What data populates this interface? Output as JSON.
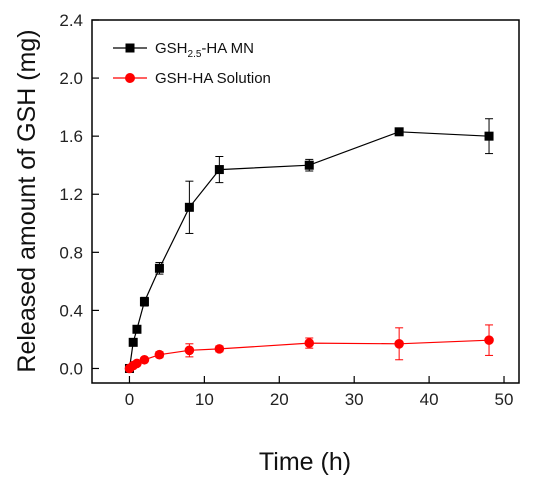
{
  "chart_data": {
    "type": "line",
    "title": "",
    "xlabel": "Time (h)",
    "ylabel": "Released amount of GSH (mg)",
    "xlim": [
      -5,
      52
    ],
    "ylim": [
      -0.1,
      2.4
    ],
    "xticks": [
      0,
      10,
      20,
      30,
      40,
      50
    ],
    "yticks": [
      0.0,
      0.4,
      0.8,
      1.2,
      1.6,
      2.0,
      2.4
    ],
    "xtick_labels": [
      "0",
      "10",
      "20",
      "30",
      "40",
      "50"
    ],
    "ytick_labels": [
      "0.0",
      "0.4",
      "0.8",
      "1.2",
      "1.6",
      "2.0",
      "2.4"
    ],
    "grid": false,
    "legend_position": "top-left",
    "series": [
      {
        "name": "GSH2.5-HA MN",
        "legend_main": "GSH",
        "legend_sub": "2.5",
        "legend_tail": "-HA MN",
        "color": "#000000",
        "marker": "square",
        "x": [
          0,
          0.5,
          1,
          2,
          4,
          8,
          12,
          24,
          36,
          48
        ],
        "y": [
          0.0,
          0.18,
          0.27,
          0.46,
          0.69,
          1.11,
          1.37,
          1.4,
          1.63,
          1.6
        ],
        "err": [
          0.0,
          0.0,
          0.02,
          0.03,
          0.04,
          0.18,
          0.09,
          0.04,
          0.0,
          0.12
        ]
      },
      {
        "name": "GSH-HA Solution",
        "color": "#ff0000",
        "marker": "circle",
        "x": [
          0,
          0.5,
          1,
          2,
          4,
          8,
          12,
          24,
          36,
          48
        ],
        "y": [
          0.0,
          0.02,
          0.035,
          0.06,
          0.095,
          0.125,
          0.135,
          0.175,
          0.17,
          0.195
        ],
        "err": [
          0.0,
          0.0,
          0.01,
          0.015,
          0.02,
          0.045,
          0.02,
          0.035,
          0.11,
          0.105
        ]
      }
    ]
  }
}
